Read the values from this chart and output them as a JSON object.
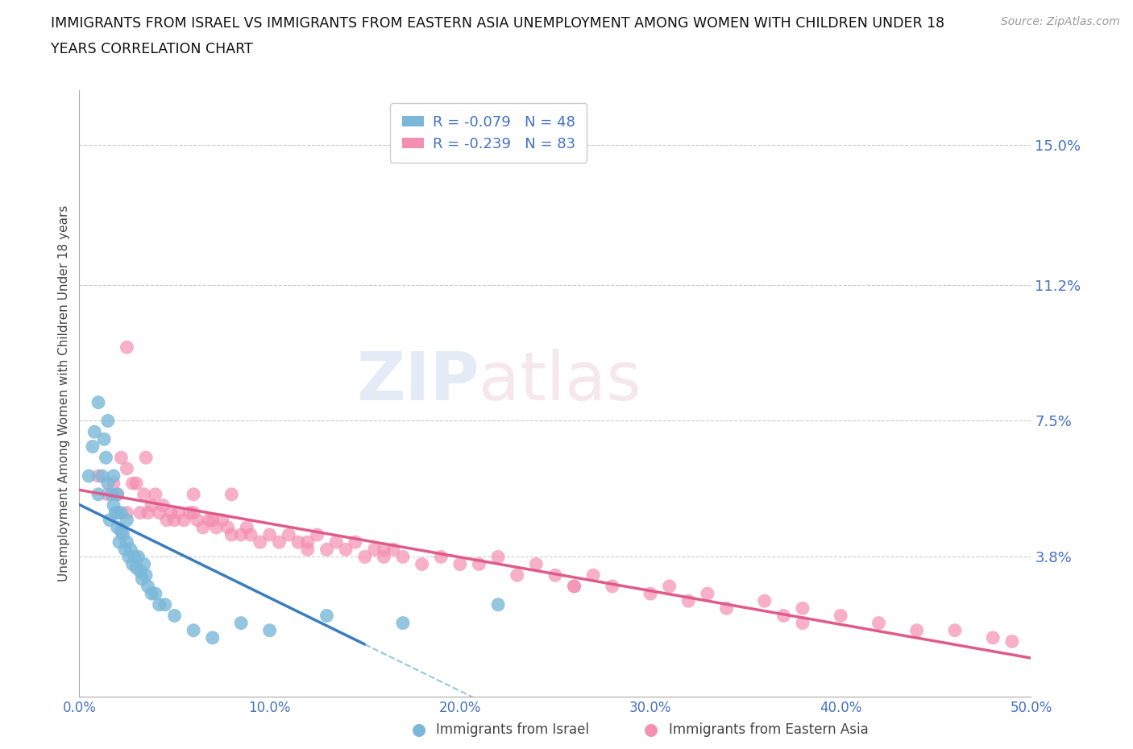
{
  "title_line1": "IMMIGRANTS FROM ISRAEL VS IMMIGRANTS FROM EASTERN ASIA UNEMPLOYMENT AMONG WOMEN WITH CHILDREN UNDER 18",
  "title_line2": "YEARS CORRELATION CHART",
  "source": "Source: ZipAtlas.com",
  "ylabel": "Unemployment Among Women with Children Under 18 years",
  "watermark_line1": "ZIP",
  "watermark_line2": "atlas",
  "xlim": [
    0.0,
    0.5
  ],
  "ylim": [
    0.0,
    0.165
  ],
  "yticks": [
    0.038,
    0.075,
    0.112,
    0.15
  ],
  "ytick_labels": [
    "3.8%",
    "7.5%",
    "11.2%",
    "15.0%"
  ],
  "xticks": [
    0.0,
    0.1,
    0.2,
    0.3,
    0.4,
    0.5
  ],
  "xtick_labels": [
    "0.0%",
    "10.0%",
    "20.0%",
    "30.0%",
    "40.0%",
    "50.0%"
  ],
  "grid_color": "#cccccc",
  "background_color": "#ffffff",
  "tick_color": "#4472c4",
  "israel_color": "#7ab8d9",
  "eastern_asia_color": "#f48fb1",
  "israel_R": -0.079,
  "israel_N": 48,
  "eastern_asia_R": -0.239,
  "eastern_asia_N": 83,
  "legend_label_israel": "Immigrants from Israel",
  "legend_label_eastern": "Immigrants from Eastern Asia",
  "israel_x": [
    0.005,
    0.007,
    0.008,
    0.01,
    0.01,
    0.012,
    0.013,
    0.014,
    0.015,
    0.015,
    0.016,
    0.017,
    0.018,
    0.018,
    0.019,
    0.02,
    0.02,
    0.02,
    0.021,
    0.022,
    0.022,
    0.023,
    0.024,
    0.025,
    0.025,
    0.026,
    0.027,
    0.028,
    0.029,
    0.03,
    0.031,
    0.032,
    0.033,
    0.034,
    0.035,
    0.036,
    0.038,
    0.04,
    0.042,
    0.045,
    0.05,
    0.06,
    0.07,
    0.085,
    0.1,
    0.13,
    0.17,
    0.22
  ],
  "israel_y": [
    0.06,
    0.068,
    0.072,
    0.055,
    0.08,
    0.06,
    0.07,
    0.065,
    0.058,
    0.075,
    0.048,
    0.055,
    0.052,
    0.06,
    0.05,
    0.046,
    0.05,
    0.055,
    0.042,
    0.045,
    0.05,
    0.044,
    0.04,
    0.042,
    0.048,
    0.038,
    0.04,
    0.036,
    0.038,
    0.035,
    0.038,
    0.034,
    0.032,
    0.036,
    0.033,
    0.03,
    0.028,
    0.028,
    0.025,
    0.025,
    0.022,
    0.018,
    0.016,
    0.02,
    0.018,
    0.022,
    0.02,
    0.025
  ],
  "eastern_x": [
    0.01,
    0.015,
    0.018,
    0.02,
    0.022,
    0.025,
    0.025,
    0.028,
    0.03,
    0.032,
    0.034,
    0.036,
    0.038,
    0.04,
    0.042,
    0.044,
    0.046,
    0.048,
    0.05,
    0.052,
    0.055,
    0.058,
    0.06,
    0.062,
    0.065,
    0.068,
    0.07,
    0.072,
    0.075,
    0.078,
    0.08,
    0.085,
    0.088,
    0.09,
    0.095,
    0.1,
    0.105,
    0.11,
    0.115,
    0.12,
    0.125,
    0.13,
    0.135,
    0.14,
    0.145,
    0.15,
    0.155,
    0.16,
    0.165,
    0.17,
    0.18,
    0.19,
    0.2,
    0.21,
    0.22,
    0.23,
    0.24,
    0.25,
    0.26,
    0.27,
    0.28,
    0.3,
    0.31,
    0.32,
    0.33,
    0.34,
    0.36,
    0.37,
    0.38,
    0.4,
    0.42,
    0.44,
    0.46,
    0.48,
    0.49,
    0.025,
    0.035,
    0.06,
    0.08,
    0.12,
    0.16,
    0.26,
    0.38
  ],
  "eastern_y": [
    0.06,
    0.055,
    0.058,
    0.055,
    0.065,
    0.062,
    0.05,
    0.058,
    0.058,
    0.05,
    0.055,
    0.05,
    0.052,
    0.055,
    0.05,
    0.052,
    0.048,
    0.05,
    0.048,
    0.05,
    0.048,
    0.05,
    0.05,
    0.048,
    0.046,
    0.048,
    0.048,
    0.046,
    0.048,
    0.046,
    0.044,
    0.044,
    0.046,
    0.044,
    0.042,
    0.044,
    0.042,
    0.044,
    0.042,
    0.04,
    0.044,
    0.04,
    0.042,
    0.04,
    0.042,
    0.038,
    0.04,
    0.038,
    0.04,
    0.038,
    0.036,
    0.038,
    0.036,
    0.036,
    0.038,
    0.033,
    0.036,
    0.033,
    0.03,
    0.033,
    0.03,
    0.028,
    0.03,
    0.026,
    0.028,
    0.024,
    0.026,
    0.022,
    0.024,
    0.022,
    0.02,
    0.018,
    0.018,
    0.016,
    0.015,
    0.095,
    0.065,
    0.055,
    0.055,
    0.042,
    0.04,
    0.03,
    0.02
  ]
}
